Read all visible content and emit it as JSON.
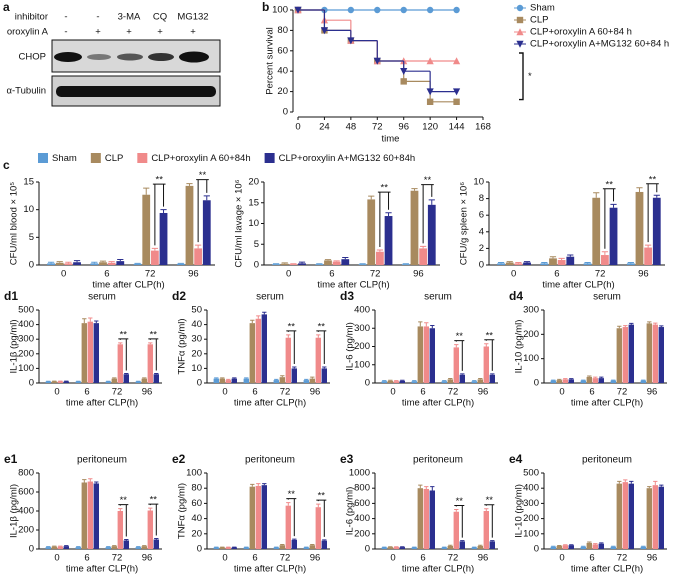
{
  "blot": {
    "label": "a",
    "row_labels": [
      "inhibitor",
      "oroxylin A"
    ],
    "inhibitor": [
      "-",
      "-",
      "3-MA",
      "CQ",
      "MG132"
    ],
    "oroxylin": [
      "-",
      "+",
      "+",
      "+",
      "+"
    ],
    "bands": [
      "CHOP",
      "α-Tubulin"
    ]
  },
  "bar_legend": {
    "label": "c",
    "series": [
      {
        "name": "Sham",
        "color": "#5b9bd5"
      },
      {
        "name": "CLP",
        "color": "#a88a5f"
      },
      {
        "name": "CLP+oroxylin A 60+84h",
        "color": "#f08a8a"
      },
      {
        "name": "CLP+oroxylin A+MG132 60+84h",
        "color": "#2b2f8f"
      }
    ]
  },
  "chart_data": [
    {
      "type": "line",
      "label": "b",
      "y_label": "Percent survival",
      "x_label": "time",
      "x": [
        0,
        24,
        48,
        72,
        96,
        120,
        144
      ],
      "xlim": [
        0,
        168
      ],
      "xticks": [
        0,
        24,
        48,
        72,
        96,
        120,
        144,
        168
      ],
      "ylim": [
        0,
        100
      ],
      "yticks": [
        0,
        20,
        40,
        60,
        80,
        100
      ],
      "step": true,
      "legend": "outside-right",
      "annotation": "*",
      "series": [
        {
          "name": "Sham",
          "color": "#5b9bd5",
          "marker": "circle",
          "values": [
            100,
            100,
            100,
            100,
            100,
            100,
            100
          ]
        },
        {
          "name": "CLP",
          "color": "#a88a5f",
          "marker": "square",
          "values": [
            100,
            80,
            70,
            50,
            30,
            10,
            10
          ]
        },
        {
          "name": "CLP+oroxylin A 60+84 h",
          "color": "#f08a8a",
          "marker": "triangle",
          "values": [
            100,
            90,
            70,
            50,
            50,
            50,
            50
          ]
        },
        {
          "name": "CLP+oroxylin A+MG132 60+84 h",
          "color": "#2b2f8f",
          "marker": "triangle-down",
          "values": [
            100,
            80,
            70,
            50,
            40,
            20,
            20
          ]
        }
      ]
    },
    {
      "type": "bar",
      "y_label": "CFU/ml blood × 10⁵",
      "x_label": "time after CLP(h)",
      "categories": [
        "0",
        "6",
        "72",
        "96"
      ],
      "ylim": [
        0,
        15
      ],
      "yticks": [
        0,
        5,
        10,
        15
      ],
      "series": [
        {
          "values": [
            0.3,
            0.3,
            0.2,
            0.2
          ],
          "errors": [
            0.2,
            0.2,
            0.1,
            0.1
          ]
        },
        {
          "values": [
            0.4,
            0.5,
            12.7,
            14.3
          ],
          "errors": [
            0.2,
            0.2,
            1.2,
            0.4
          ]
        },
        {
          "values": [
            0.3,
            0.4,
            2.6,
            3.0
          ],
          "errors": [
            0.2,
            0.2,
            0.4,
            0.6
          ]
        },
        {
          "values": [
            0.5,
            0.7,
            9.4,
            11.7
          ],
          "errors": [
            0.3,
            0.3,
            0.6,
            0.8
          ]
        }
      ],
      "significance": [
        {
          "category": "72",
          "label": "**"
        },
        {
          "category": "96",
          "label": "**"
        }
      ]
    },
    {
      "type": "bar",
      "y_label": "CFU/ml lavage × 10⁶",
      "x_label": "time after CLP(h)",
      "categories": [
        "0",
        "6",
        "72",
        "96"
      ],
      "ylim": [
        0,
        20
      ],
      "yticks": [
        0,
        5,
        10,
        15,
        20
      ],
      "series": [
        {
          "values": [
            0.2,
            0.2,
            0.2,
            0.2
          ],
          "errors": [
            0.1,
            0.1,
            0.1,
            0.1
          ]
        },
        {
          "values": [
            0.3,
            1.1,
            15.8,
            17.9
          ],
          "errors": [
            0.2,
            0.2,
            0.8,
            0.5
          ]
        },
        {
          "values": [
            0.2,
            0.8,
            3.2,
            4.0
          ],
          "errors": [
            0.1,
            0.2,
            0.4,
            0.5
          ]
        },
        {
          "values": [
            0.4,
            1.4,
            11.8,
            14.5
          ],
          "errors": [
            0.3,
            0.4,
            0.8,
            1.2
          ]
        }
      ],
      "significance": [
        {
          "category": "72",
          "label": "**"
        },
        {
          "category": "96",
          "label": "**"
        }
      ]
    },
    {
      "type": "bar",
      "y_label": "CFU/g spleen × 10⁶",
      "x_label": "time after CLP(h)",
      "categories": [
        "0",
        "6",
        "72",
        "96"
      ],
      "ylim": [
        0,
        10
      ],
      "yticks": [
        0,
        2,
        4,
        6,
        8,
        10
      ],
      "series": [
        {
          "values": [
            0.2,
            0.2,
            0.2,
            0.2
          ],
          "errors": [
            0.1,
            0.1,
            0.1,
            0.1
          ]
        },
        {
          "values": [
            0.3,
            0.8,
            8.1,
            8.8
          ],
          "errors": [
            0.1,
            0.2,
            0.6,
            0.5
          ]
        },
        {
          "values": [
            0.2,
            0.6,
            1.2,
            2.1
          ],
          "errors": [
            0.1,
            0.2,
            0.4,
            0.3
          ]
        },
        {
          "values": [
            0.3,
            1.0,
            6.9,
            8.1
          ],
          "errors": [
            0.1,
            0.2,
            0.4,
            0.3
          ]
        }
      ],
      "significance": [
        {
          "category": "72",
          "label": "**"
        },
        {
          "category": "96",
          "label": "**"
        }
      ]
    },
    {
      "type": "bar",
      "label": "d1",
      "title": "serum",
      "y_label": "IL-1β (pg/ml)",
      "x_label": "time after CLP(h)",
      "categories": [
        "0",
        "6",
        "72",
        "96"
      ],
      "ylim": [
        0,
        500
      ],
      "yticks": [
        0,
        100,
        200,
        300,
        400,
        500
      ],
      "series": [
        {
          "values": [
            10,
            10,
            10,
            10
          ],
          "errors": [
            2,
            2,
            2,
            2
          ]
        },
        {
          "values": [
            10,
            410,
            30,
            30
          ],
          "errors": [
            3,
            30,
            5,
            5
          ]
        },
        {
          "values": [
            10,
            420,
            265,
            265
          ],
          "errors": [
            3,
            25,
            10,
            10
          ]
        },
        {
          "values": [
            10,
            410,
            60,
            60
          ],
          "errors": [
            3,
            15,
            5,
            5
          ]
        }
      ],
      "significance": [
        {
          "category": "72",
          "label": "**"
        },
        {
          "category": "96",
          "label": "**"
        }
      ]
    },
    {
      "type": "bar",
      "label": "d2",
      "title": "serum",
      "y_label": "TNFα (pg/ml)",
      "x_label": "time after CLP(h)",
      "categories": [
        "0",
        "6",
        "72",
        "96"
      ],
      "ylim": [
        0,
        50
      ],
      "yticks": [
        0,
        10,
        20,
        30,
        40,
        50
      ],
      "series": [
        {
          "values": [
            3,
            3,
            2,
            2
          ],
          "errors": [
            0.5,
            0.5,
            0.5,
            0.5
          ]
        },
        {
          "values": [
            3,
            41,
            4,
            3
          ],
          "errors": [
            0.5,
            2,
            1,
            1
          ]
        },
        {
          "values": [
            2,
            44,
            31,
            31
          ],
          "errors": [
            0.5,
            2,
            2,
            2
          ]
        },
        {
          "values": [
            3,
            47,
            10,
            10
          ],
          "errors": [
            0.5,
            1.5,
            1,
            1
          ]
        }
      ],
      "significance": [
        {
          "category": "72",
          "label": "**"
        },
        {
          "category": "96",
          "label": "**"
        }
      ]
    },
    {
      "type": "bar",
      "label": "d3",
      "title": "serum",
      "y_label": "IL-6 (pg/ml)",
      "x_label": "time after CLP(h)",
      "categories": [
        "0",
        "6",
        "72",
        "96"
      ],
      "ylim": [
        0,
        400
      ],
      "yticks": [
        0,
        100,
        200,
        300,
        400
      ],
      "series": [
        {
          "values": [
            10,
            10,
            10,
            10
          ],
          "errors": [
            3,
            3,
            3,
            3
          ]
        },
        {
          "values": [
            12,
            310,
            20,
            20
          ],
          "errors": [
            3,
            25,
            5,
            5
          ]
        },
        {
          "values": [
            10,
            310,
            195,
            200
          ],
          "errors": [
            3,
            20,
            15,
            15
          ]
        },
        {
          "values": [
            12,
            300,
            45,
            45
          ],
          "errors": [
            3,
            15,
            5,
            5
          ]
        }
      ],
      "significance": [
        {
          "category": "72",
          "label": "**"
        },
        {
          "category": "96",
          "label": "**"
        }
      ]
    },
    {
      "type": "bar",
      "label": "d4",
      "title": "serum",
      "y_label": "IL-10 (pg/ml)",
      "x_label": "time after CLP(h)",
      "categories": [
        "0",
        "6",
        "72",
        "96"
      ],
      "ylim": [
        0,
        300
      ],
      "yticks": [
        0,
        100,
        200,
        300
      ],
      "series": [
        {
          "values": [
            10,
            10,
            10,
            10
          ],
          "errors": [
            2,
            2,
            2,
            2
          ]
        },
        {
          "values": [
            12,
            25,
            225,
            245
          ],
          "errors": [
            3,
            4,
            8,
            6
          ]
        },
        {
          "values": [
            15,
            20,
            230,
            240
          ],
          "errors": [
            3,
            4,
            6,
            6
          ]
        },
        {
          "values": [
            15,
            20,
            240,
            230
          ],
          "errors": [
            3,
            4,
            5,
            5
          ]
        }
      ]
    },
    {
      "type": "bar",
      "label": "e1",
      "title": "peritoneum",
      "y_label": "IL-1β (pg/ml)",
      "x_label": "time after CLP(h)",
      "categories": [
        "0",
        "6",
        "72",
        "96"
      ],
      "ylim": [
        0,
        800
      ],
      "yticks": [
        0,
        200,
        400,
        600,
        800
      ],
      "series": [
        {
          "values": [
            20,
            20,
            20,
            20
          ],
          "errors": [
            5,
            5,
            5,
            5
          ]
        },
        {
          "values": [
            25,
            700,
            30,
            30
          ],
          "errors": [
            5,
            30,
            5,
            5
          ]
        },
        {
          "values": [
            25,
            710,
            400,
            405
          ],
          "errors": [
            5,
            30,
            25,
            25
          ]
        },
        {
          "values": [
            30,
            690,
            90,
            100
          ],
          "errors": [
            5,
            15,
            10,
            10
          ]
        }
      ],
      "significance": [
        {
          "category": "72",
          "label": "**"
        },
        {
          "category": "96",
          "label": "**"
        }
      ]
    },
    {
      "type": "bar",
      "label": "e2",
      "title": "peritoneum",
      "y_label": "TNFα (pg/ml)",
      "x_label": "time after CLP(h)",
      "categories": [
        "0",
        "6",
        "72",
        "96"
      ],
      "ylim": [
        0,
        100
      ],
      "yticks": [
        0,
        20,
        40,
        60,
        80,
        100
      ],
      "series": [
        {
          "values": [
            2,
            2,
            2,
            2
          ],
          "errors": [
            0.5,
            0.5,
            0.5,
            0.5
          ]
        },
        {
          "values": [
            2,
            82,
            5,
            5
          ],
          "errors": [
            0.5,
            3,
            1,
            1
          ]
        },
        {
          "values": [
            2,
            83,
            57,
            55
          ],
          "errors": [
            0.5,
            3,
            4,
            4
          ]
        },
        {
          "values": [
            2,
            84,
            12,
            11
          ],
          "errors": [
            0.5,
            2,
            1,
            1
          ]
        }
      ],
      "significance": [
        {
          "category": "72",
          "label": "**"
        },
        {
          "category": "96",
          "label": "**"
        }
      ]
    },
    {
      "type": "bar",
      "label": "e3",
      "title": "peritoneum",
      "y_label": "IL-6 (pg/ml)",
      "x_label": "time after CLP(h)",
      "categories": [
        "0",
        "6",
        "72",
        "96"
      ],
      "ylim": [
        0,
        1000
      ],
      "yticks": [
        0,
        200,
        400,
        600,
        800,
        1000
      ],
      "series": [
        {
          "values": [
            20,
            20,
            20,
            20
          ],
          "errors": [
            5,
            5,
            5,
            5
          ]
        },
        {
          "values": [
            25,
            800,
            40,
            40
          ],
          "errors": [
            5,
            40,
            10,
            10
          ]
        },
        {
          "values": [
            25,
            790,
            490,
            500
          ],
          "errors": [
            5,
            30,
            30,
            30
          ]
        },
        {
          "values": [
            25,
            770,
            100,
            100
          ],
          "errors": [
            5,
            50,
            10,
            10
          ]
        }
      ],
      "significance": [
        {
          "category": "72",
          "label": "**"
        },
        {
          "category": "96",
          "label": "**"
        }
      ]
    },
    {
      "type": "bar",
      "label": "e4",
      "title": "peritoneum",
      "y_label": "IL-10 (pg/ml)",
      "x_label": "time after CLP(h)",
      "categories": [
        "0",
        "6",
        "72",
        "96"
      ],
      "ylim": [
        0,
        500
      ],
      "yticks": [
        0,
        100,
        200,
        300,
        400,
        500
      ],
      "series": [
        {
          "values": [
            15,
            15,
            15,
            15
          ],
          "errors": [
            3,
            3,
            3,
            3
          ]
        },
        {
          "values": [
            20,
            40,
            430,
            400
          ],
          "errors": [
            3,
            6,
            15,
            10
          ]
        },
        {
          "values": [
            25,
            30,
            440,
            420
          ],
          "errors": [
            3,
            5,
            15,
            25
          ]
        },
        {
          "values": [
            25,
            35,
            430,
            410
          ],
          "errors": [
            3,
            5,
            15,
            10
          ]
        }
      ]
    }
  ]
}
